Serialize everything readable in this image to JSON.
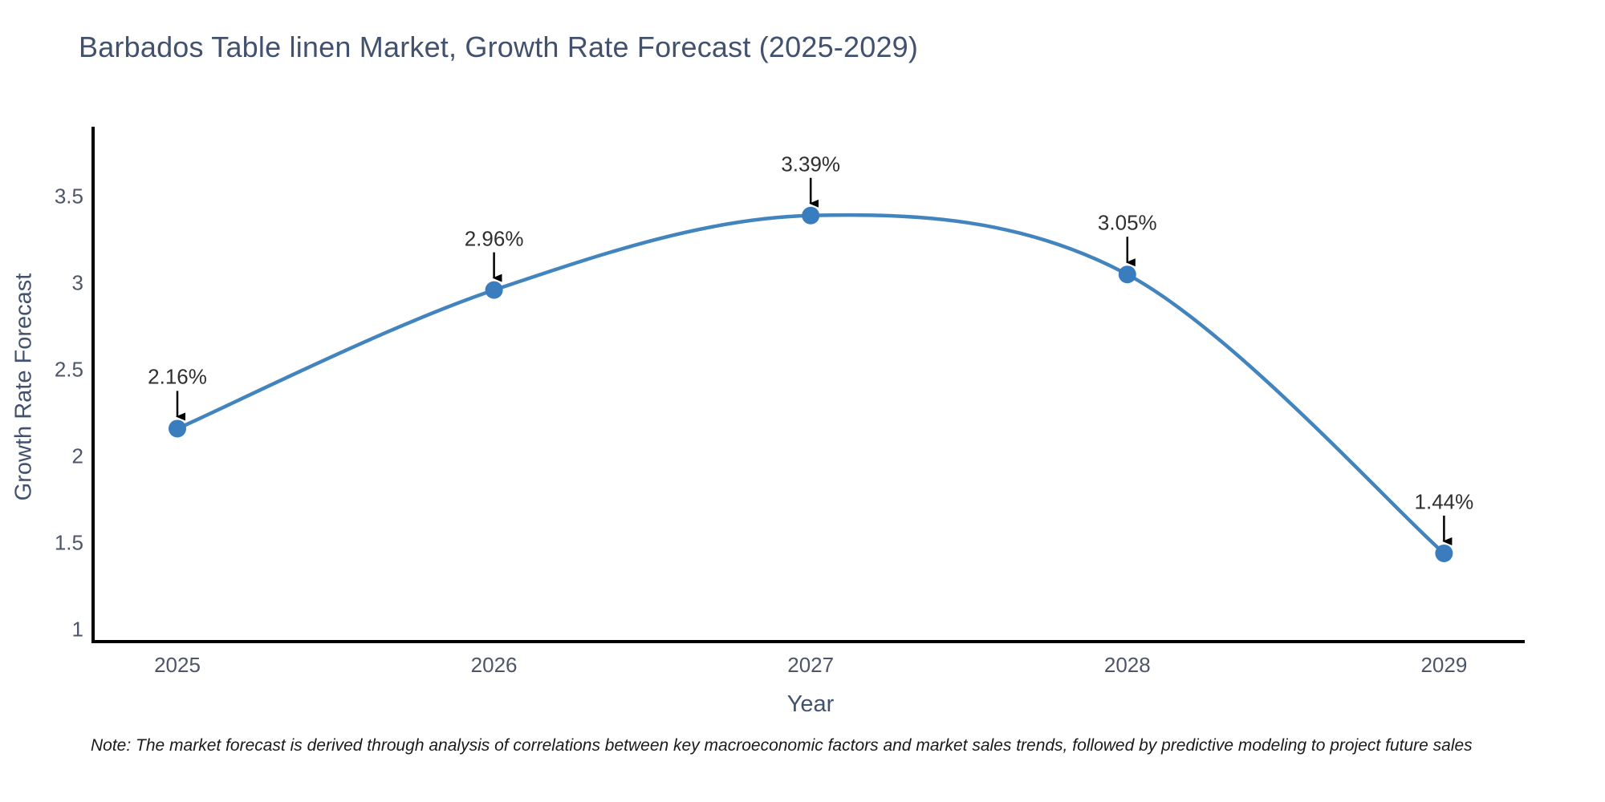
{
  "title": "Barbados Table linen Market, Growth Rate Forecast (2025-2029)",
  "note": "Note: The market forecast is derived through analysis of correlations between key macroeconomic factors and market sales trends, followed by predictive modeling to project future sales",
  "chart_data": {
    "type": "line",
    "line_shape": "spline",
    "title": "Barbados Table linen Market, Growth Rate Forecast (2025-2029)",
    "xlabel": "Year",
    "ylabel": "Growth Rate Forecast",
    "categories": [
      "2025",
      "2026",
      "2027",
      "2028",
      "2029"
    ],
    "values": [
      2.16,
      2.96,
      3.39,
      3.05,
      1.44
    ],
    "point_labels": [
      "2.16%",
      "2.96%",
      "3.39%",
      "3.05%",
      "1.44%"
    ],
    "yticks": [
      1,
      1.5,
      2,
      2.5,
      3,
      3.5
    ],
    "ylim": [
      0.92,
      3.9
    ],
    "grid": false,
    "legend_position": "none",
    "annotations_style": "arrow-down-to-point",
    "colors": {
      "line": "#4284bd",
      "marker": "#3a7dbf",
      "axis": "#000000",
      "arrow": "#000000",
      "title_text": "#42526e",
      "tick_text": "#4c5668",
      "annotation_text": "#2f2f2f"
    }
  }
}
